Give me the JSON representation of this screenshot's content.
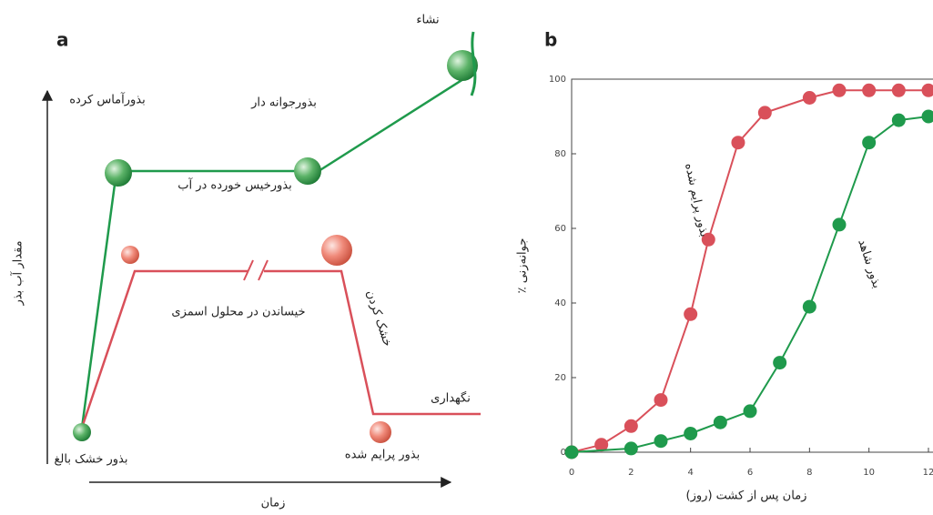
{
  "diagram": {
    "panel_label": "a",
    "y_axis_label": "مقدار آب بذر",
    "x_axis_label": "زمان",
    "labels": [
      "نشاء",
      "بذورآماس کرده",
      "بذورجوانه دار",
      "بذورخیس خورده در آب",
      "خیساندن در محلول اسمزی",
      "خشک کردن",
      "نگهداری",
      "بذور خشک بالغ",
      "بذور پرایم شده"
    ]
  },
  "chart_data": {
    "type": "line",
    "panel_label": "b",
    "xlabel": "زمان پس از کشت (روز)",
    "ylabel": "٪ جوانه‌زنی",
    "xlim": [
      0,
      12
    ],
    "ylim": [
      0,
      100
    ],
    "xticks": [
      0,
      2,
      4,
      6,
      8,
      10,
      12
    ],
    "yticks": [
      0,
      20,
      40,
      60,
      80,
      100
    ],
    "series": [
      {
        "name": "بذور پرایم شده",
        "color": "#d9505a",
        "x": [
          0,
          1,
          2,
          3,
          4,
          4.6,
          5.6,
          6.5,
          8,
          9,
          10,
          11,
          12
        ],
        "values": [
          0,
          2,
          7,
          14,
          37,
          57,
          83,
          91,
          95,
          97,
          97,
          97,
          97
        ]
      },
      {
        "name": "بذور شاهد",
        "color": "#1f9a4c",
        "x": [
          0,
          2,
          3,
          4,
          5,
          6,
          7,
          8,
          9,
          10,
          11,
          12
        ],
        "values": [
          0,
          1,
          3,
          5,
          8,
          11,
          24,
          39,
          61,
          83,
          89,
          90
        ]
      }
    ]
  }
}
